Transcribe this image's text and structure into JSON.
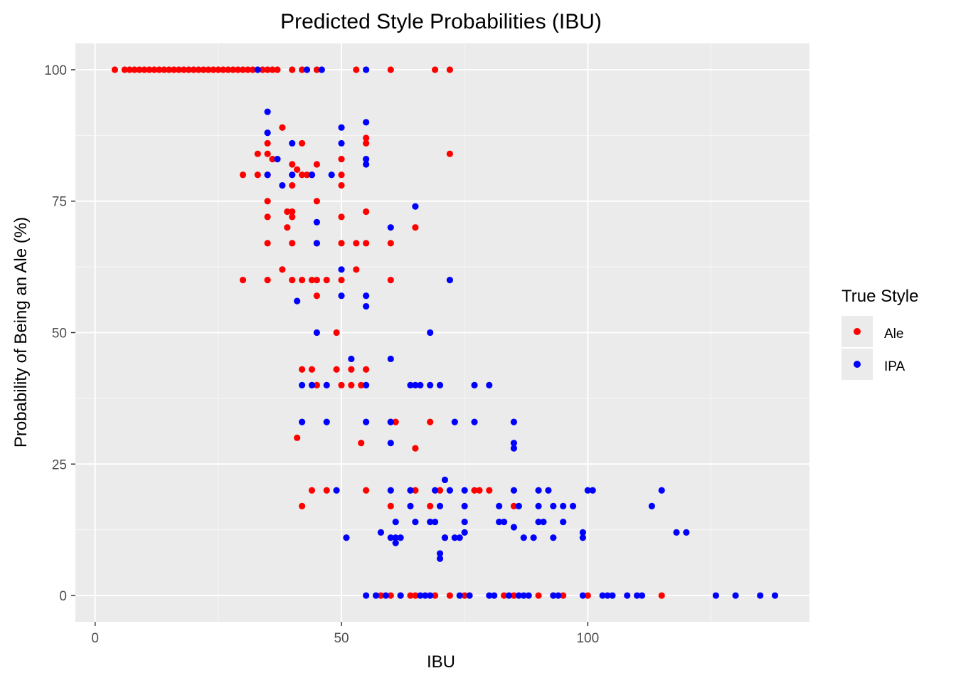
{
  "chart_data": {
    "type": "scatter",
    "title": "Predicted Style Probabilities (IBU)",
    "xlabel": "IBU",
    "ylabel": "Probability of Being an Ale (%)",
    "xlim": [
      -4,
      145
    ],
    "ylim": [
      -5,
      105
    ],
    "x_ticks": [
      0,
      50,
      100
    ],
    "y_ticks": [
      0,
      25,
      50,
      75,
      100
    ],
    "x_tick_labels": [
      "0",
      "50",
      "100"
    ],
    "y_tick_labels": [
      "0",
      "25",
      "50",
      "75",
      "100"
    ],
    "grid": true,
    "legend": {
      "title": "True Style",
      "position": "right"
    },
    "series": [
      {
        "name": "Ale",
        "color": "#ff0000",
        "points": [
          [
            4,
            100
          ],
          [
            6,
            100
          ],
          [
            7,
            100
          ],
          [
            8,
            100
          ],
          [
            9,
            100
          ],
          [
            10,
            100
          ],
          [
            11,
            100
          ],
          [
            12,
            100
          ],
          [
            13,
            100
          ],
          [
            14,
            100
          ],
          [
            15,
            100
          ],
          [
            16,
            100
          ],
          [
            17,
            100
          ],
          [
            18,
            100
          ],
          [
            19,
            100
          ],
          [
            20,
            100
          ],
          [
            21,
            100
          ],
          [
            22,
            100
          ],
          [
            23,
            100
          ],
          [
            24,
            100
          ],
          [
            25,
            100
          ],
          [
            26,
            100
          ],
          [
            27,
            100
          ],
          [
            28,
            100
          ],
          [
            29,
            100
          ],
          [
            30,
            100
          ],
          [
            31,
            100
          ],
          [
            32,
            100
          ],
          [
            34,
            100
          ],
          [
            35,
            100
          ],
          [
            36,
            100
          ],
          [
            37,
            100
          ],
          [
            40,
            100
          ],
          [
            42,
            100
          ],
          [
            45,
            100
          ],
          [
            53,
            100
          ],
          [
            60,
            100
          ],
          [
            69,
            100
          ],
          [
            72,
            100
          ],
          [
            38,
            89
          ],
          [
            42,
            86
          ],
          [
            55,
            87
          ],
          [
            55,
            86
          ],
          [
            35,
            86
          ],
          [
            33,
            84
          ],
          [
            35,
            84
          ],
          [
            36,
            83
          ],
          [
            50,
            83
          ],
          [
            72,
            84
          ],
          [
            40,
            82
          ],
          [
            45,
            82
          ],
          [
            41,
            81
          ],
          [
            30,
            80
          ],
          [
            33,
            80
          ],
          [
            35,
            80
          ],
          [
            42,
            80
          ],
          [
            43,
            80
          ],
          [
            44,
            80
          ],
          [
            50,
            80
          ],
          [
            50,
            78
          ],
          [
            40,
            78
          ],
          [
            45,
            75
          ],
          [
            35,
            75
          ],
          [
            39,
            73
          ],
          [
            40,
            73
          ],
          [
            55,
            73
          ],
          [
            40,
            72
          ],
          [
            50,
            72
          ],
          [
            35,
            72
          ],
          [
            39,
            70
          ],
          [
            65,
            70
          ],
          [
            35,
            67
          ],
          [
            40,
            67
          ],
          [
            45,
            67
          ],
          [
            50,
            67
          ],
          [
            53,
            67
          ],
          [
            55,
            67
          ],
          [
            60,
            67
          ],
          [
            38,
            62
          ],
          [
            53,
            62
          ],
          [
            30,
            60
          ],
          [
            35,
            60
          ],
          [
            40,
            60
          ],
          [
            42,
            60
          ],
          [
            44,
            60
          ],
          [
            45,
            60
          ],
          [
            47,
            60
          ],
          [
            50,
            60
          ],
          [
            60,
            60
          ],
          [
            45,
            57
          ],
          [
            49,
            50
          ],
          [
            42,
            43
          ],
          [
            44,
            43
          ],
          [
            49,
            43
          ],
          [
            52,
            43
          ],
          [
            55,
            43
          ],
          [
            45,
            40
          ],
          [
            50,
            40
          ],
          [
            52,
            40
          ],
          [
            54,
            40
          ],
          [
            41,
            30
          ],
          [
            54,
            29
          ],
          [
            60,
            33
          ],
          [
            61,
            33
          ],
          [
            68,
            33
          ],
          [
            65,
            28
          ],
          [
            44,
            20
          ],
          [
            47,
            20
          ],
          [
            55,
            20
          ],
          [
            65,
            20
          ],
          [
            70,
            20
          ],
          [
            77,
            20
          ],
          [
            78,
            20
          ],
          [
            80,
            20
          ],
          [
            42,
            17
          ],
          [
            60,
            17
          ],
          [
            68,
            17
          ],
          [
            85,
            17
          ],
          [
            71,
            11
          ],
          [
            58,
            0
          ],
          [
            60,
            0
          ],
          [
            62,
            0
          ],
          [
            64,
            0
          ],
          [
            65,
            0
          ],
          [
            69,
            0
          ],
          [
            72,
            0
          ],
          [
            75,
            0
          ],
          [
            83,
            0
          ],
          [
            85,
            0
          ],
          [
            90,
            0
          ],
          [
            93,
            0
          ],
          [
            95,
            0
          ],
          [
            100,
            0
          ],
          [
            115,
            0
          ]
        ]
      },
      {
        "name": "IPA",
        "color": "#0000ff",
        "points": [
          [
            33,
            100
          ],
          [
            43,
            100
          ],
          [
            46,
            100
          ],
          [
            55,
            100
          ],
          [
            35,
            92
          ],
          [
            50,
            89
          ],
          [
            55,
            90
          ],
          [
            35,
            88
          ],
          [
            40,
            86
          ],
          [
            50,
            86
          ],
          [
            37,
            83
          ],
          [
            55,
            83
          ],
          [
            55,
            82
          ],
          [
            35,
            80
          ],
          [
            40,
            80
          ],
          [
            44,
            80
          ],
          [
            48,
            80
          ],
          [
            38,
            78
          ],
          [
            65,
            74
          ],
          [
            45,
            71
          ],
          [
            60,
            70
          ],
          [
            45,
            67
          ],
          [
            50,
            62
          ],
          [
            72,
            60
          ],
          [
            50,
            57
          ],
          [
            55,
            57
          ],
          [
            41,
            56
          ],
          [
            55,
            55
          ],
          [
            45,
            50
          ],
          [
            68,
            50
          ],
          [
            52,
            45
          ],
          [
            60,
            45
          ],
          [
            42,
            40
          ],
          [
            44,
            40
          ],
          [
            47,
            40
          ],
          [
            55,
            40
          ],
          [
            64,
            40
          ],
          [
            65,
            40
          ],
          [
            66,
            40
          ],
          [
            68,
            40
          ],
          [
            70,
            40
          ],
          [
            77,
            40
          ],
          [
            80,
            40
          ],
          [
            42,
            33
          ],
          [
            47,
            33
          ],
          [
            55,
            33
          ],
          [
            60,
            33
          ],
          [
            73,
            33
          ],
          [
            77,
            33
          ],
          [
            85,
            33
          ],
          [
            60,
            29
          ],
          [
            85,
            29
          ],
          [
            85,
            28
          ],
          [
            49,
            20
          ],
          [
            60,
            20
          ],
          [
            64,
            20
          ],
          [
            69,
            20
          ],
          [
            71,
            22
          ],
          [
            72,
            20
          ],
          [
            75,
            20
          ],
          [
            85,
            20
          ],
          [
            90,
            20
          ],
          [
            92,
            20
          ],
          [
            100,
            20
          ],
          [
            101,
            20
          ],
          [
            115,
            20
          ],
          [
            64,
            17
          ],
          [
            70,
            17
          ],
          [
            75,
            17
          ],
          [
            82,
            17
          ],
          [
            86,
            17
          ],
          [
            90,
            17
          ],
          [
            93,
            17
          ],
          [
            95,
            17
          ],
          [
            97,
            17
          ],
          [
            113,
            17
          ],
          [
            61,
            14
          ],
          [
            65,
            14
          ],
          [
            68,
            14
          ],
          [
            69,
            14
          ],
          [
            75,
            14
          ],
          [
            82,
            14
          ],
          [
            83,
            14
          ],
          [
            90,
            14
          ],
          [
            91,
            14
          ],
          [
            95,
            14
          ],
          [
            58,
            12
          ],
          [
            75,
            12
          ],
          [
            85,
            13
          ],
          [
            99,
            12
          ],
          [
            118,
            12
          ],
          [
            120,
            12
          ],
          [
            51,
            11
          ],
          [
            60,
            11
          ],
          [
            61,
            11
          ],
          [
            62,
            11
          ],
          [
            71,
            11
          ],
          [
            73,
            11
          ],
          [
            74,
            11
          ],
          [
            87,
            11
          ],
          [
            89,
            11
          ],
          [
            93,
            11
          ],
          [
            99,
            11
          ],
          [
            61,
            10
          ],
          [
            70,
            8
          ],
          [
            70,
            7
          ],
          [
            55,
            0
          ],
          [
            57,
            0
          ],
          [
            59,
            0
          ],
          [
            62,
            0
          ],
          [
            66,
            0
          ],
          [
            67,
            0
          ],
          [
            68,
            0
          ],
          [
            74,
            0
          ],
          [
            76,
            0
          ],
          [
            80,
            0
          ],
          [
            81,
            0
          ],
          [
            84,
            0
          ],
          [
            86,
            0
          ],
          [
            87,
            0
          ],
          [
            88,
            0
          ],
          [
            93,
            0
          ],
          [
            94,
            0
          ],
          [
            99,
            0
          ],
          [
            103,
            0
          ],
          [
            104,
            0
          ],
          [
            105,
            0
          ],
          [
            108,
            0
          ],
          [
            110,
            0
          ],
          [
            111,
            0
          ],
          [
            126,
            0
          ],
          [
            130,
            0
          ],
          [
            135,
            0
          ],
          [
            138,
            0
          ]
        ]
      }
    ]
  }
}
